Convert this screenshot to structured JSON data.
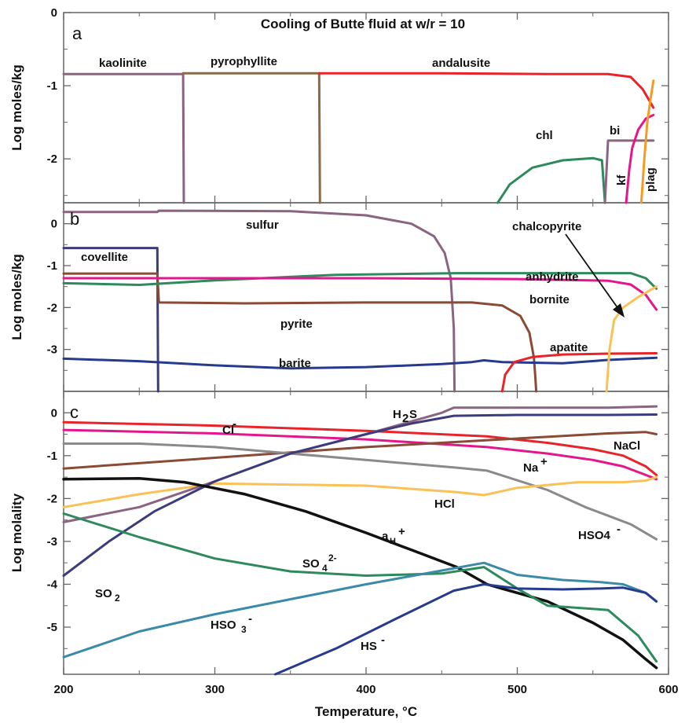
{
  "chart_data": [
    {
      "panel": "a",
      "type": "line",
      "title": "Cooling of Butte fluid at w/r = 10",
      "xlabel": "Temperature, °C",
      "ylabel": "Log moles/kg",
      "xlim": [
        200,
        600
      ],
      "ylim": [
        -2.6,
        0
      ],
      "yticks": [
        0,
        -1,
        -2
      ],
      "xticks": [
        200,
        300,
        400,
        500,
        600
      ],
      "series": [
        {
          "name": "kaolinite",
          "color": "#8a6480",
          "x": [
            200,
            279,
            279.5
          ],
          "y": [
            -0.84,
            -0.84,
            -2.6
          ]
        },
        {
          "name": "pyrophyllite",
          "color": "#8a6a48",
          "x": [
            279,
            369,
            369.5
          ],
          "y": [
            -0.83,
            -0.83,
            -2.6
          ]
        },
        {
          "name": "andalusite",
          "color": "#e8242a",
          "x": [
            369,
            450,
            520,
            560,
            575,
            583,
            590
          ],
          "y": [
            -0.83,
            -0.83,
            -0.84,
            -0.84,
            -0.88,
            -1.05,
            -1.3
          ]
        },
        {
          "name": "chl",
          "color": "#2e8a5c",
          "x": [
            487,
            495,
            510,
            530,
            550,
            556,
            558
          ],
          "y": [
            -2.6,
            -2.35,
            -2.12,
            -2.02,
            -1.99,
            -2.02,
            -2.6
          ]
        },
        {
          "name": "bi",
          "color": "#8a6480",
          "x": [
            558,
            560,
            590
          ],
          "y": [
            -2.6,
            -1.75,
            -1.75
          ]
        },
        {
          "name": "kf",
          "color": "#e4168c",
          "x": [
            572,
            574,
            576,
            580,
            585,
            590
          ],
          "y": [
            -2.6,
            -2.15,
            -1.85,
            -1.6,
            -1.45,
            -1.4
          ]
        },
        {
          "name": "plag",
          "color": "#f59a24",
          "x": [
            582,
            584,
            586,
            588,
            590
          ],
          "y": [
            -2.6,
            -2.0,
            -1.5,
            -1.2,
            -0.93
          ]
        }
      ],
      "annotations": [
        "a",
        "kaolinite",
        "pyrophyllite",
        "andalusite",
        "chl",
        "bi",
        "kf",
        "plag"
      ]
    },
    {
      "panel": "b",
      "type": "line",
      "ylabel": "Log moles/kg",
      "xlim": [
        200,
        600
      ],
      "ylim": [
        -4,
        0.5
      ],
      "yticks": [
        0,
        -1,
        -2,
        -3
      ],
      "series": [
        {
          "name": "sulfur",
          "color": "#8a6480",
          "x": [
            200,
            262,
            263,
            350,
            400,
            430,
            445,
            452,
            456,
            458,
            458.5
          ],
          "y": [
            0.28,
            0.28,
            0.31,
            0.3,
            0.2,
            0.0,
            -0.3,
            -0.7,
            -1.3,
            -2.5,
            -4.0
          ]
        },
        {
          "name": "covellite",
          "color": "#3c3c7c",
          "x": [
            200,
            262,
            262.5
          ],
          "y": [
            -0.58,
            -0.58,
            -4.0
          ]
        },
        {
          "name": "pyrite",
          "color": "#8a4a36",
          "x": [
            200,
            262,
            263,
            320,
            400,
            470,
            490,
            502,
            508,
            511,
            512,
            512.5
          ],
          "y": [
            -1.19,
            -1.19,
            -1.88,
            -1.9,
            -1.88,
            -1.88,
            -1.95,
            -2.2,
            -2.6,
            -3.2,
            -3.7,
            -4.0
          ]
        },
        {
          "name": "anhydrite",
          "color": "#2e8a5c",
          "x": [
            200,
            250,
            300,
            380,
            460,
            520,
            575,
            585,
            592
          ],
          "y": [
            -1.42,
            -1.46,
            -1.35,
            -1.22,
            -1.18,
            -1.18,
            -1.18,
            -1.3,
            -1.55
          ]
        },
        {
          "name": "bornite",
          "color": "#e4168c",
          "x": [
            200,
            262,
            300,
            400,
            500,
            560,
            575,
            585,
            592
          ],
          "y": [
            -1.3,
            -1.3,
            -1.3,
            -1.3,
            -1.32,
            -1.36,
            -1.45,
            -1.7,
            -2.05
          ]
        },
        {
          "name": "barite",
          "color": "#263a8e",
          "x": [
            200,
            250,
            300,
            350,
            400,
            450,
            470,
            478,
            490,
            530,
            560,
            592
          ],
          "y": [
            -3.22,
            -3.28,
            -3.38,
            -3.45,
            -3.42,
            -3.35,
            -3.3,
            -3.26,
            -3.3,
            -3.33,
            -3.25,
            -3.2
          ]
        },
        {
          "name": "apatite",
          "color": "#e8242a",
          "x": [
            490,
            492,
            498,
            510,
            530,
            560,
            592
          ],
          "y": [
            -4.0,
            -3.6,
            -3.3,
            -3.18,
            -3.12,
            -3.1,
            -3.09
          ]
        },
        {
          "name": "chalcopyrite",
          "color": "#f9c157",
          "x": [
            559,
            561,
            564,
            570,
            580,
            592
          ],
          "y": [
            -4.0,
            -3.0,
            -2.3,
            -2.0,
            -1.75,
            -1.5
          ]
        }
      ],
      "annotations": [
        "b",
        "sulfur",
        "covellite",
        "pyrite",
        "anhydrite",
        "bornite",
        "barite",
        "apatite",
        "chalcopyrite"
      ]
    },
    {
      "panel": "c",
      "type": "line",
      "xlabel": "Temperature, °C",
      "ylabel": "Log molality",
      "xlim": [
        200,
        600
      ],
      "ylim": [
        -6.1,
        0.5
      ],
      "yticks": [
        0,
        -1,
        -2,
        -3,
        -4,
        -5
      ],
      "xticks": [
        200,
        300,
        400,
        500,
        600
      ],
      "series": [
        {
          "name": "Cl-",
          "color": "#e8242a",
          "x": [
            200,
            300,
            400,
            480,
            520,
            550,
            570,
            585,
            592
          ],
          "y": [
            -0.22,
            -0.3,
            -0.42,
            -0.55,
            -0.7,
            -0.85,
            -1.0,
            -1.25,
            -1.45
          ]
        },
        {
          "name": "Na+",
          "color": "#e4168c",
          "x": [
            200,
            300,
            400,
            480,
            520,
            550,
            570,
            585,
            592
          ],
          "y": [
            -0.4,
            -0.48,
            -0.62,
            -0.8,
            -0.95,
            -1.1,
            -1.25,
            -1.45,
            -1.55
          ]
        },
        {
          "name": "NaCl",
          "color": "#8a4a36",
          "x": [
            200,
            300,
            400,
            500,
            560,
            585,
            592
          ],
          "y": [
            -1.3,
            -1.05,
            -0.8,
            -0.6,
            -0.48,
            -0.45,
            -0.5
          ]
        },
        {
          "name": "HSO4-",
          "color": "#8a8a8a",
          "x": [
            200,
            250,
            300,
            400,
            460,
            480,
            520,
            545,
            560,
            575,
            592
          ],
          "y": [
            -0.72,
            -0.72,
            -0.8,
            -1.1,
            -1.28,
            -1.35,
            -1.8,
            -2.2,
            -2.4,
            -2.6,
            -2.95
          ]
        },
        {
          "name": "HCl",
          "color": "#f9c157",
          "x": [
            200,
            250,
            300,
            400,
            460,
            478,
            500,
            540,
            570,
            585,
            592
          ],
          "y": [
            -2.2,
            -1.9,
            -1.65,
            -1.7,
            -1.85,
            -1.92,
            -1.75,
            -1.62,
            -1.62,
            -1.58,
            -1.5
          ]
        },
        {
          "name": "H2S",
          "color": "#8a6480",
          "x": [
            200,
            250,
            300,
            350,
            400,
            430,
            450,
            458,
            500,
            560,
            592
          ],
          "y": [
            -2.55,
            -2.2,
            -1.6,
            -0.95,
            -0.5,
            -0.2,
            0.0,
            0.12,
            0.12,
            0.12,
            0.15
          ]
        },
        {
          "name": "SO2",
          "color": "#3c3c7c",
          "x": [
            200,
            230,
            260,
            300,
            350,
            400,
            430,
            458,
            500,
            560,
            592
          ],
          "y": [
            -3.8,
            -3.0,
            -2.3,
            -1.6,
            -0.95,
            -0.5,
            -0.25,
            -0.07,
            -0.05,
            -0.05,
            -0.04
          ]
        },
        {
          "name": "aH+",
          "color": "#111111",
          "x": [
            200,
            250,
            280,
            320,
            360,
            400,
            430,
            460,
            480,
            520,
            550,
            570,
            585,
            592
          ],
          "y": [
            -1.55,
            -1.53,
            -1.62,
            -1.9,
            -2.3,
            -2.8,
            -3.2,
            -3.6,
            -4.0,
            -4.4,
            -4.9,
            -5.3,
            -5.75,
            -5.95
          ]
        },
        {
          "name": "SO4 2-",
          "color": "#2e8a5c",
          "x": [
            200,
            250,
            300,
            350,
            400,
            450,
            478,
            500,
            520,
            560,
            580,
            592
          ],
          "y": [
            -2.35,
            -2.9,
            -3.4,
            -3.7,
            -3.8,
            -3.75,
            -3.6,
            -4.1,
            -4.5,
            -4.6,
            -5.2,
            -5.8
          ]
        },
        {
          "name": "HSO3-",
          "color": "#3a8aa8",
          "x": [
            200,
            250,
            300,
            350,
            400,
            450,
            478,
            500,
            530,
            555,
            570,
            585,
            592
          ],
          "y": [
            -5.7,
            -5.1,
            -4.7,
            -4.35,
            -4.0,
            -3.68,
            -3.5,
            -3.78,
            -3.9,
            -3.95,
            -4.0,
            -4.2,
            -4.4
          ]
        },
        {
          "name": "HS-",
          "color": "#263a8e",
          "x": [
            340,
            380,
            420,
            458,
            478,
            500,
            530,
            555,
            570,
            585,
            592
          ],
          "y": [
            -6.1,
            -5.5,
            -4.8,
            -4.15,
            -4.0,
            -4.1,
            -4.12,
            -4.1,
            -4.08,
            -4.2,
            -4.4
          ]
        }
      ],
      "annotations": [
        "c",
        "Cl",
        "-",
        "H",
        "2",
        "S",
        "NaCl",
        "Na",
        "+",
        "HCl",
        "HSO4",
        "-",
        "a",
        "H",
        "+",
        "SO",
        "2",
        "SO",
        "4",
        "2-",
        "HSO",
        "3",
        "-",
        "HS",
        "-"
      ]
    }
  ]
}
